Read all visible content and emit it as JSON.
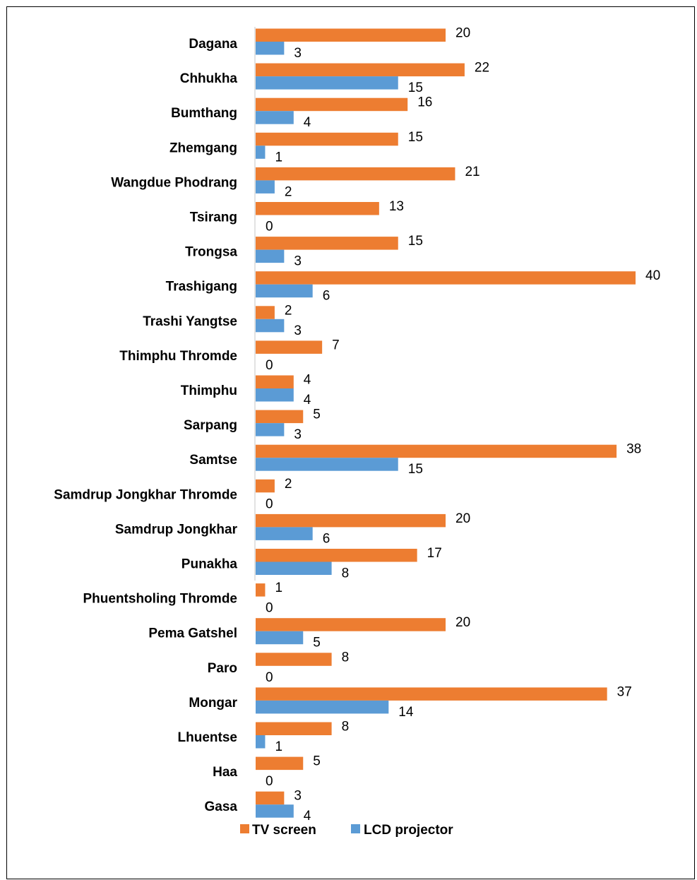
{
  "chart_data": {
    "type": "bar",
    "orientation": "horizontal",
    "categories": [
      "Dagana",
      "Chhukha",
      "Bumthang",
      "Zhemgang",
      "Wangdue Phodrang",
      "Tsirang",
      "Trongsa",
      "Trashigang",
      "Trashi  Yangtse",
      "Thimphu Thromde",
      "Thimphu",
      "Sarpang",
      "Samtse",
      "Samdrup Jongkhar Thromde",
      "Samdrup Jongkhar",
      "Punakha",
      "Phuentsholing Thromde",
      "Pema Gatshel",
      "Paro",
      "Mongar",
      "Lhuentse",
      "Haa",
      "Gasa"
    ],
    "series": [
      {
        "name": "TV screen",
        "color": "#ED7D31",
        "values": [
          20,
          22,
          16,
          15,
          21,
          13,
          15,
          40,
          2,
          7,
          4,
          5,
          38,
          2,
          20,
          17,
          1,
          20,
          8,
          37,
          8,
          5,
          3
        ]
      },
      {
        "name": "LCD projector",
        "color": "#5B9BD5",
        "values": [
          3,
          15,
          4,
          1,
          2,
          0,
          3,
          6,
          3,
          0,
          4,
          3,
          15,
          0,
          6,
          8,
          0,
          5,
          0,
          14,
          1,
          0,
          4
        ]
      }
    ],
    "xlim": [
      0,
      40
    ],
    "grid": false,
    "legend_position": "bottom"
  }
}
